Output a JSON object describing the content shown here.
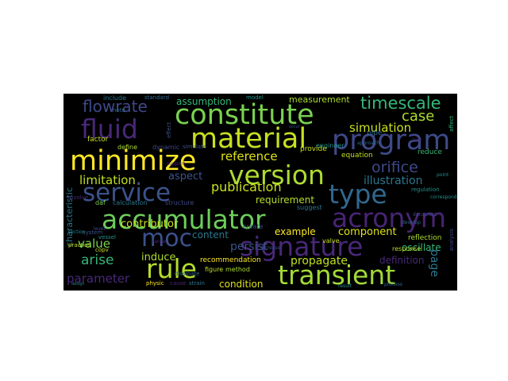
{
  "background_color": "#000000",
  "words": [
    {
      "text": "constitute",
      "color": "#7ad151"
    },
    {
      "text": "material",
      "color": "#c8e020"
    },
    {
      "text": "fluid",
      "color": "#482878"
    },
    {
      "text": "program",
      "color": "#3e4989"
    },
    {
      "text": "minimize",
      "color": "#fde725"
    },
    {
      "text": "version",
      "color": "#addc30"
    },
    {
      "text": "service",
      "color": "#3b528b"
    },
    {
      "text": "type",
      "color": "#31688e"
    },
    {
      "text": "accumulator",
      "color": "#6ccd5a"
    },
    {
      "text": "acronym",
      "color": "#482475"
    },
    {
      "text": "moc",
      "color": "#3b528b"
    },
    {
      "text": "signature",
      "color": "#482878"
    },
    {
      "text": "rule",
      "color": "#b5de2b"
    },
    {
      "text": "transient",
      "color": "#a2da37"
    },
    {
      "text": "flowrate",
      "color": "#3e4989"
    },
    {
      "text": "timescale",
      "color": "#35b779"
    },
    {
      "text": "case",
      "color": "#addc30"
    },
    {
      "text": "simulation",
      "color": "#c8e020"
    },
    {
      "text": "orifice",
      "color": "#3e4989"
    },
    {
      "text": "illustration",
      "color": "#2a788e"
    },
    {
      "text": "reference",
      "color": "#dde318"
    },
    {
      "text": "limitation",
      "color": "#c2df23"
    },
    {
      "text": "aspect",
      "color": "#3b528b"
    },
    {
      "text": "publication",
      "color": "#c8e020"
    },
    {
      "text": "requirement",
      "color": "#b5de2b"
    },
    {
      "text": "assumption",
      "color": "#35b779"
    },
    {
      "text": "measurement",
      "color": "#addc30"
    },
    {
      "text": "contributor",
      "color": "#c8e020"
    },
    {
      "text": "content",
      "color": "#2a788e"
    },
    {
      "text": "example",
      "color": "#fde725"
    },
    {
      "text": "component",
      "color": "#dde318"
    },
    {
      "text": "value",
      "color": "#7ad151"
    },
    {
      "text": "arise",
      "color": "#35b779"
    },
    {
      "text": "induce",
      "color": "#addc30"
    },
    {
      "text": "persist",
      "color": "#3b528b"
    },
    {
      "text": "propagate",
      "color": "#c2df23"
    },
    {
      "text": "parameter",
      "color": "#482878"
    },
    {
      "text": "condition",
      "color": "#dde318"
    },
    {
      "text": "recommendation",
      "color": "#fde725"
    },
    {
      "text": "oscillate",
      "color": "#35b779"
    },
    {
      "text": "page",
      "color": "#2a788e"
    },
    {
      "text": "definition",
      "color": "#482878"
    },
    {
      "text": "reflection",
      "color": "#addc30"
    },
    {
      "text": "response",
      "color": "#b5de2b"
    },
    {
      "text": "characteristic",
      "color": "#2a788e"
    },
    {
      "text": "factor",
      "color": "#c8e020"
    },
    {
      "text": "define",
      "color": "#addc30"
    },
    {
      "text": "dynamic",
      "color": "#3e4989"
    },
    {
      "text": "simulate",
      "color": "#3b528b"
    },
    {
      "text": "engineer",
      "color": "#21918c"
    },
    {
      "text": "equation",
      "color": "#c2df23"
    },
    {
      "text": "reduce",
      "color": "#35b779"
    },
    {
      "text": "provide",
      "color": "#c8e020"
    },
    {
      "text": "regulation",
      "color": "#21918c"
    },
    {
      "text": "suggest",
      "color": "#2a788e"
    },
    {
      "text": "valve",
      "color": "#c8e020"
    },
    {
      "text": "pipe",
      "color": "#31688e"
    },
    {
      "text": "include",
      "color": "#2a788e"
    },
    {
      "text": "standard",
      "color": "#31688e"
    },
    {
      "text": "note",
      "color": "#31688e"
    },
    {
      "text": "model",
      "color": "#21918c"
    },
    {
      "text": "calculation",
      "color": "#2a788e"
    },
    {
      "text": "structure",
      "color": "#3e4989"
    },
    {
      "text": "daf",
      "color": "#7ad151"
    },
    {
      "text": "involve",
      "color": "#482878"
    },
    {
      "text": "copv",
      "color": "#c8e020"
    },
    {
      "text": "vessel",
      "color": "#21918c"
    },
    {
      "text": "practice",
      "color": "#c2df23"
    },
    {
      "text": "system",
      "color": "#3b528b"
    },
    {
      "text": "section",
      "color": "#26828e"
    },
    {
      "text": "figure",
      "color": "#c2df23"
    },
    {
      "text": "dissipate",
      "color": "#31688e"
    },
    {
      "text": "method",
      "color": "#addc30"
    },
    {
      "text": "create",
      "color": "#3e4989"
    },
    {
      "text": "physic",
      "color": "#fde725"
    },
    {
      "text": "cause",
      "color": "#482878"
    },
    {
      "text": "strain",
      "color": "#2a788e"
    },
    {
      "text": "develop",
      "color": "#31688e"
    },
    {
      "text": "affect",
      "color": "#35b779"
    },
    {
      "text": "level",
      "color": "#3e4989"
    },
    {
      "text": "test",
      "color": "#482878"
    },
    {
      "text": "correspond",
      "color": "#21918c"
    },
    {
      "text": "occur",
      "color": "#3b528b"
    },
    {
      "text": "document",
      "color": "#3e4989"
    },
    {
      "text": "approach",
      "color": "#31688e"
    },
    {
      "text": "design",
      "color": "#26828e"
    },
    {
      "text": "increase",
      "color": "#3b528b"
    },
    {
      "text": "support",
      "color": "#482878"
    },
    {
      "text": "result",
      "color": "#21918c"
    },
    {
      "text": "process",
      "color": "#31688e"
    },
    {
      "text": "analysis",
      "color": "#3e4989"
    },
    {
      "text": "effect",
      "color": "#3b528b"
    },
    {
      "text": "range",
      "color": "#482878"
    },
    {
      "text": "point",
      "color": "#21918c"
    },
    {
      "text": "rate",
      "color": "#31688e"
    }
  ]
}
